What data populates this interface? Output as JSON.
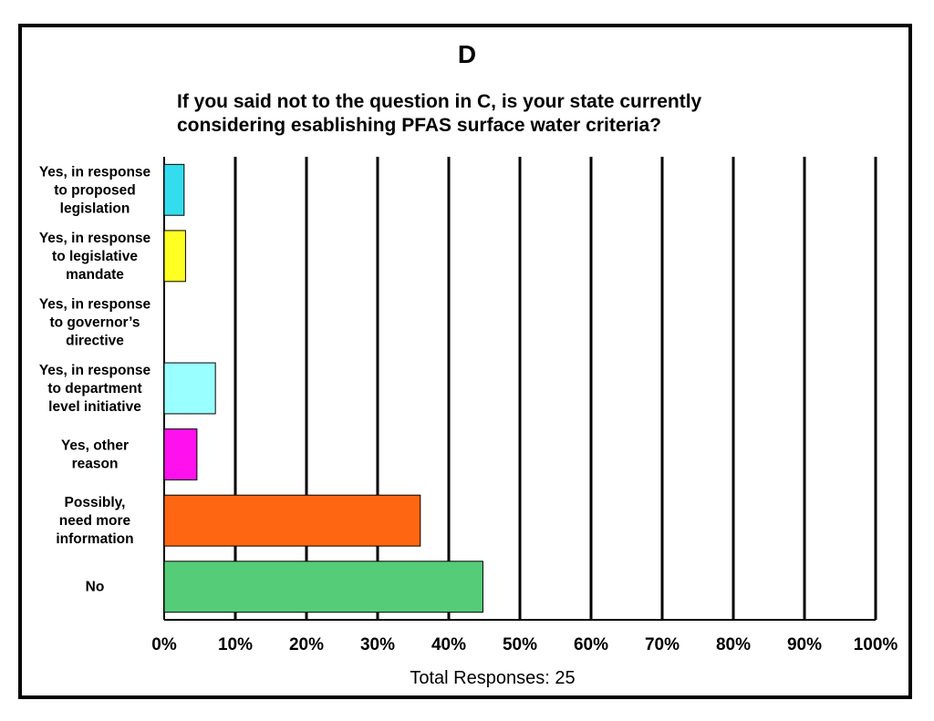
{
  "chart_data": {
    "type": "bar",
    "orientation": "horizontal",
    "panel_label": "D",
    "title": "If you said not to the question in C, is your state currently considering esablishing PFAS surface water criteria?",
    "title_lines": [
      "If you said not to the question in C, is your state currently",
      "considering esablishing PFAS surface water criteria?"
    ],
    "categories": [
      "Yes, in response to proposed legislation",
      "Yes, in response to legislative mandate",
      "Yes, in response to governor’s directive",
      "Yes, in response to department level initiative",
      "Yes, other reason",
      "Possibly, need more information",
      "No"
    ],
    "category_lines": [
      [
        "Yes, in response",
        "to proposed",
        "legislation"
      ],
      [
        "Yes, in response",
        "to legislative",
        "mandate"
      ],
      [
        "Yes, in response",
        "to governor’s",
        "directive"
      ],
      [
        "Yes, in response",
        "to department",
        "level initiative"
      ],
      [
        "Yes, other",
        "reason"
      ],
      [
        "Possibly,",
        "need more",
        "information"
      ],
      [
        "No"
      ]
    ],
    "values": [
      0.028,
      0.03,
      0.0,
      0.072,
      0.046,
      0.36,
      0.448
    ],
    "colors": [
      "#33DDEE",
      "#FFFF22",
      "#FFFFFF",
      "#99FFFF",
      "#FF11EE",
      "#FF6611",
      "#55CC77"
    ],
    "xlim": [
      0,
      1
    ],
    "x_ticks": [
      "0%",
      "10%",
      "20%",
      "30%",
      "40%",
      "50%",
      "60%",
      "70%",
      "80%",
      "90%",
      "100%"
    ],
    "grid": true,
    "footer": "Total Responses:  25"
  }
}
